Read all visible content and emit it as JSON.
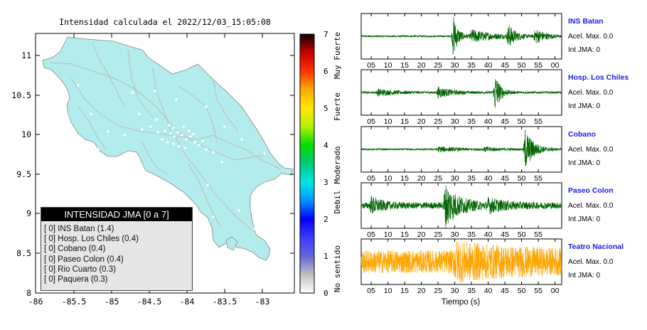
{
  "map": {
    "title": "Intensidad calculada el 2022/12/03_15:05:08",
    "xticks": [
      "-86",
      "-85.5",
      "-85",
      "-84.5",
      "-84",
      "-83.5",
      "-83"
    ],
    "yticks": [
      "11",
      "10.5",
      "10",
      "9.5",
      "9",
      "8.5",
      "8"
    ],
    "land_color": "#b3ecec",
    "road_color": "#bbbbbb"
  },
  "colorbar": {
    "ticks": [
      "0",
      "1",
      "2",
      "3",
      "4",
      "5",
      "6",
      "7"
    ],
    "labels": [
      "No sentido",
      "Debil",
      "Moderado",
      "Fuerte",
      "Muy Fuerte"
    ]
  },
  "legend": {
    "title": "INTENSIDAD JMA [0 a 7]",
    "rows": [
      "[ 0] INS Batan (1.4)",
      "[ 0] Hosp. Los Chiles (0.4)",
      "[ 0] Cobano (0.4)",
      "[ 0] Paseo Colon (0.4)",
      "[ 0] Rio Cuarto (0.3)",
      "[ 0] Paquera (0.3)"
    ]
  },
  "chart_data": {
    "type": "line",
    "xlabel": "Tiempo (s)",
    "series": [
      {
        "name": "INS Batan",
        "color": "#006400",
        "ticks": [
          "05",
          "10",
          "15",
          "20",
          "25",
          "30",
          "35",
          "40",
          "45",
          "50",
          "55",
          "00"
        ],
        "accel": "Acel. Max. 0.0",
        "jma": "Int JMA: 0",
        "bursts": [
          {
            "t": 29.5,
            "amp": 1.0,
            "decay": 1.5
          },
          {
            "t": 35,
            "amp": 0.3,
            "decay": 7
          },
          {
            "t": 46,
            "amp": 0.55,
            "decay": 2
          },
          {
            "t": 54,
            "amp": 0.35,
            "decay": 3
          }
        ],
        "noise": 0.04
      },
      {
        "name": "Hosp. Los Chiles",
        "color": "#006400",
        "ticks": [
          "05",
          "10",
          "15",
          "20",
          "25",
          "30",
          "35",
          "40",
          "45",
          "50",
          "55"
        ],
        "accel": "Acel. Max. 0.0",
        "jma": "Int JMA: 0",
        "bursts": [
          {
            "t": 7,
            "amp": 0.15,
            "decay": 5
          },
          {
            "t": 25,
            "amp": 0.25,
            "decay": 4
          },
          {
            "t": 42,
            "amp": 1.0,
            "decay": 1.5
          }
        ],
        "noise": 0.05
      },
      {
        "name": "Cobano",
        "color": "#006400",
        "ticks": [
          "05",
          "10",
          "15",
          "20",
          "25",
          "30",
          "35",
          "40",
          "45",
          "50",
          "55"
        ],
        "accel": "Acel. Max. 0.0",
        "jma": "Int JMA: 0",
        "bursts": [
          {
            "t": 25,
            "amp": 0.12,
            "decay": 6
          },
          {
            "t": 39,
            "amp": 0.1,
            "decay": 4
          },
          {
            "t": 51,
            "amp": 1.0,
            "decay": 2.5
          }
        ],
        "noise": 0.04
      },
      {
        "name": "Paseo Colon",
        "color": "#006400",
        "ticks": [
          "05",
          "10",
          "15",
          "20",
          "25",
          "30",
          "35",
          "40",
          "45",
          "50",
          "55"
        ],
        "accel": "Acel. Max. 0.0",
        "jma": "Int JMA: 0",
        "bursts": [
          {
            "t": 5,
            "amp": 0.35,
            "decay": 3
          },
          {
            "t": 27,
            "amp": 1.0,
            "decay": 4
          },
          {
            "t": 40,
            "amp": 0.25,
            "decay": 5
          }
        ],
        "noise": 0.15
      },
      {
        "name": "Teatro Nacional",
        "color": "#ffa500",
        "ticks": [
          "05",
          "10",
          "15",
          "20",
          "25",
          "30",
          "35",
          "40",
          "45",
          "50",
          "55",
          "00"
        ],
        "accel": "Acel. Max. 0.0",
        "jma": "Int JMA: 0",
        "bursts": [
          {
            "t": 30,
            "amp": 0.5,
            "decay": 20
          }
        ],
        "noise": 0.55
      }
    ]
  }
}
